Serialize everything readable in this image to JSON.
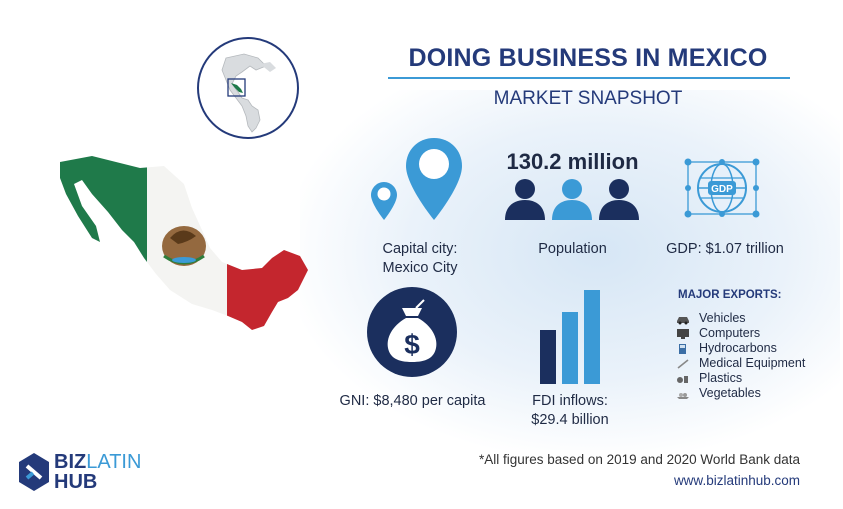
{
  "header": {
    "title": "DOING BUSINESS IN MEXICO",
    "subtitle": "MARKET SNAPSHOT"
  },
  "stats": {
    "capital": {
      "label_line1": "Capital city:",
      "label_line2": "Mexico City",
      "icon": "location-pin-icon"
    },
    "population": {
      "value": "130.2 million",
      "label": "Population",
      "icon": "people-icon"
    },
    "gdp": {
      "badge": "GDP",
      "label": "GDP: $1.07 trillion",
      "icon": "globe-icon"
    },
    "gni": {
      "label": "GNI: $8,480 per capita",
      "icon": "money-bag-icon"
    },
    "fdi": {
      "label_line1": "FDI inflows:",
      "label_line2": "$29.4 billion",
      "icon": "bar-chart-icon"
    }
  },
  "exports": {
    "heading": "MAJOR EXPORTS:",
    "items": [
      {
        "label": "Vehicles",
        "icon": "car-icon"
      },
      {
        "label": "Computers",
        "icon": "computer-icon"
      },
      {
        "label": "Hydrocarbons",
        "icon": "fuel-icon"
      },
      {
        "label": "Medical Equipment",
        "icon": "syringe-icon"
      },
      {
        "label": "Plastics",
        "icon": "plastic-icon"
      },
      {
        "label": "Vegetables",
        "icon": "vegetables-icon"
      }
    ]
  },
  "footer": {
    "note": "*All figures based on 2019 and 2020 World Bank data",
    "website": "www.bizlatinhub.com"
  },
  "logo": {
    "word1": "BIZ",
    "word2": "LATIN",
    "word3": "HUB"
  },
  "colors": {
    "navy": "#243a7a",
    "blue": "#3b9ad6",
    "dark_navy": "#1b2f5e",
    "flag_green": "#1f7a4a",
    "flag_red": "#c4262e"
  }
}
